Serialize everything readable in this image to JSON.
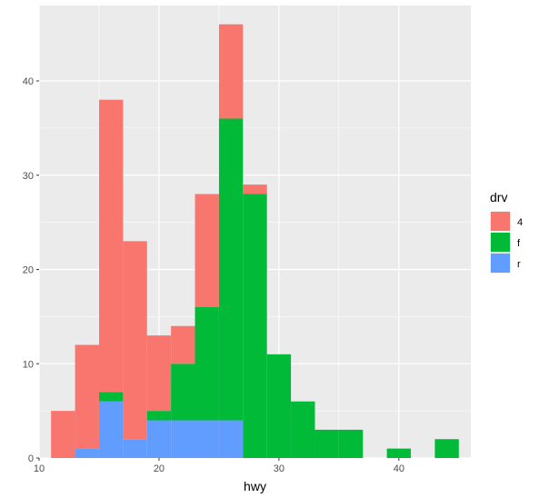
{
  "chart_data": {
    "type": "bar",
    "subtype": "stacked-histogram",
    "xlabel": "hwy",
    "ylabel": "",
    "xlim": [
      10,
      46
    ],
    "ylim": [
      0,
      48
    ],
    "x_ticks": [
      10,
      20,
      30,
      40
    ],
    "y_ticks": [
      0,
      10,
      20,
      30,
      40
    ],
    "x_tick_labels": [
      "10",
      "20",
      "30",
      "40"
    ],
    "y_tick_labels": [
      "0",
      "10",
      "20",
      "30",
      "40"
    ],
    "bin_edges": [
      11,
      13,
      15,
      17,
      19,
      21,
      23,
      25,
      27,
      29,
      31,
      33,
      35,
      37,
      39,
      41,
      43,
      45
    ],
    "series": [
      {
        "name": "r",
        "color": "#619CFF",
        "values": [
          0,
          1,
          6,
          2,
          4,
          4,
          4,
          4,
          0,
          0,
          0,
          0,
          0,
          0,
          0,
          0,
          0
        ]
      },
      {
        "name": "f",
        "color": "#00BA38",
        "values": [
          0,
          0,
          1,
          0,
          1,
          6,
          12,
          32,
          28,
          11,
          6,
          3,
          3,
          0,
          1,
          0,
          2
        ]
      },
      {
        "name": "4",
        "color": "#F8766D",
        "values": [
          5,
          11,
          31,
          21,
          8,
          4,
          12,
          10,
          1,
          0,
          0,
          0,
          0,
          0,
          0,
          0,
          0
        ]
      }
    ],
    "legend": {
      "title": "drv",
      "position": "right",
      "entries": [
        {
          "label": "4",
          "color": "#F8766D"
        },
        {
          "label": "f",
          "color": "#00BA38"
        },
        {
          "label": "r",
          "color": "#619CFF"
        }
      ]
    },
    "grid": true,
    "panel_background": "#EBEBEB",
    "grid_color": "#FFFFFF"
  }
}
